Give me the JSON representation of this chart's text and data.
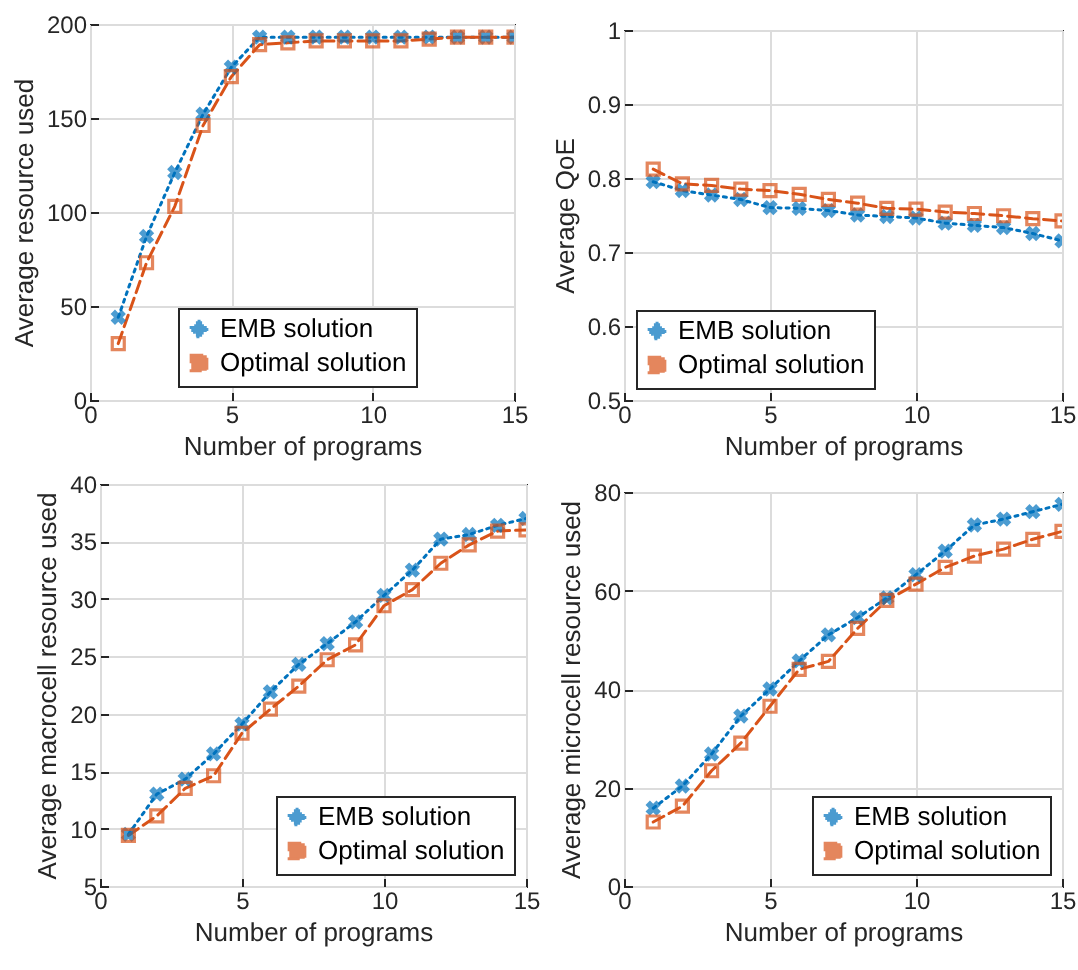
{
  "chart_data": [
    {
      "type": "line",
      "xlabel": "Number of programs",
      "ylabel": "Average resource used",
      "x": [
        1,
        2,
        3,
        4,
        5,
        6,
        7,
        8,
        9,
        10,
        11,
        12,
        13,
        14,
        15
      ],
      "xlim": [
        0,
        15
      ],
      "xticks": [
        0,
        5,
        10,
        15
      ],
      "ylim": [
        0,
        200
      ],
      "yticks": [
        0,
        50,
        100,
        150,
        200
      ],
      "grid": true,
      "legend": "bottom",
      "series": [
        {
          "name": "EMB solution",
          "color": "#0072bd",
          "marker": "cross",
          "line_style": "dotted",
          "values": [
            44,
            87,
            121,
            152,
            177,
            193,
            193,
            193,
            193,
            193,
            193,
            193,
            193,
            193,
            193
          ]
        },
        {
          "name": "Optimal solution",
          "color": "#d95319",
          "marker": "square",
          "line_style": "dashed",
          "values": [
            30,
            73,
            103,
            146,
            172,
            189,
            190,
            191,
            191,
            191,
            191,
            192,
            193,
            193,
            193
          ]
        }
      ]
    },
    {
      "type": "line",
      "xlabel": "Number of programs",
      "ylabel": "Average QoE",
      "x": [
        1,
        2,
        3,
        4,
        5,
        6,
        7,
        8,
        9,
        10,
        11,
        12,
        13,
        14,
        15
      ],
      "xlim": [
        0,
        15
      ],
      "xticks": [
        0,
        5,
        10,
        15
      ],
      "ylim": [
        0.5,
        1
      ],
      "yticks": [
        0.5,
        0.6,
        0.7,
        0.8,
        0.9,
        1
      ],
      "grid": true,
      "legend": "bottom left",
      "series": [
        {
          "name": "EMB solution",
          "color": "#0072bd",
          "marker": "cross",
          "line_style": "dotted",
          "values": [
            0.795,
            0.783,
            0.777,
            0.771,
            0.76,
            0.759,
            0.756,
            0.75,
            0.748,
            0.746,
            0.739,
            0.736,
            0.733,
            0.725,
            0.715
          ]
        },
        {
          "name": "Optimal solution",
          "color": "#d95319",
          "marker": "square",
          "line_style": "dashed",
          "values": [
            0.812,
            0.792,
            0.79,
            0.785,
            0.783,
            0.778,
            0.771,
            0.766,
            0.759,
            0.758,
            0.754,
            0.752,
            0.749,
            0.745,
            0.742
          ]
        }
      ]
    },
    {
      "type": "line",
      "xlabel": "Number of programs",
      "ylabel": "Average macrocell resource used",
      "x": [
        1,
        2,
        3,
        4,
        5,
        6,
        7,
        8,
        9,
        10,
        11,
        12,
        13,
        14,
        15
      ],
      "xlim": [
        0,
        15
      ],
      "xticks": [
        0,
        5,
        10,
        15
      ],
      "ylim": [
        5,
        40
      ],
      "yticks": [
        5,
        10,
        15,
        20,
        25,
        30,
        35,
        40
      ],
      "grid": true,
      "legend": "bottom right",
      "series": [
        {
          "name": "EMB solution",
          "color": "#0072bd",
          "marker": "cross",
          "line_style": "dotted",
          "values": [
            9.5,
            13,
            14.3,
            16.5,
            19.1,
            21.9,
            24.3,
            26.1,
            28,
            30.3,
            32.5,
            35.2,
            35.6,
            36.4,
            37
          ]
        },
        {
          "name": "Optimal solution",
          "color": "#d95319",
          "marker": "square",
          "line_style": "dashed",
          "values": [
            9.4,
            11.1,
            13.5,
            14.6,
            18.3,
            20.4,
            22.4,
            24.7,
            26,
            29.4,
            30.8,
            33.1,
            34.7,
            35.9,
            36
          ]
        }
      ]
    },
    {
      "type": "line",
      "xlabel": "Number of programs",
      "ylabel": "Average microcell resource used",
      "x": [
        1,
        2,
        3,
        4,
        5,
        6,
        7,
        8,
        9,
        10,
        11,
        12,
        13,
        14,
        15
      ],
      "xlim": [
        0,
        15
      ],
      "xticks": [
        0,
        5,
        10,
        15
      ],
      "ylim": [
        0,
        80
      ],
      "yticks": [
        0,
        20,
        40,
        60,
        80
      ],
      "grid": true,
      "legend": "bottom right",
      "series": [
        {
          "name": "EMB solution",
          "color": "#0072bd",
          "marker": "cross",
          "line_style": "dotted",
          "values": [
            15.8,
            20.3,
            26.8,
            34.5,
            40,
            45.7,
            51,
            54.5,
            58.5,
            63.2,
            68,
            73.3,
            74.5,
            76,
            77.5
          ]
        },
        {
          "name": "Optimal solution",
          "color": "#d95319",
          "marker": "square",
          "line_style": "dashed",
          "values": [
            13,
            16.2,
            23.4,
            29,
            36.5,
            44,
            45.6,
            52.3,
            58,
            61.3,
            64.7,
            67,
            68.4,
            70.4,
            72
          ]
        }
      ]
    }
  ]
}
